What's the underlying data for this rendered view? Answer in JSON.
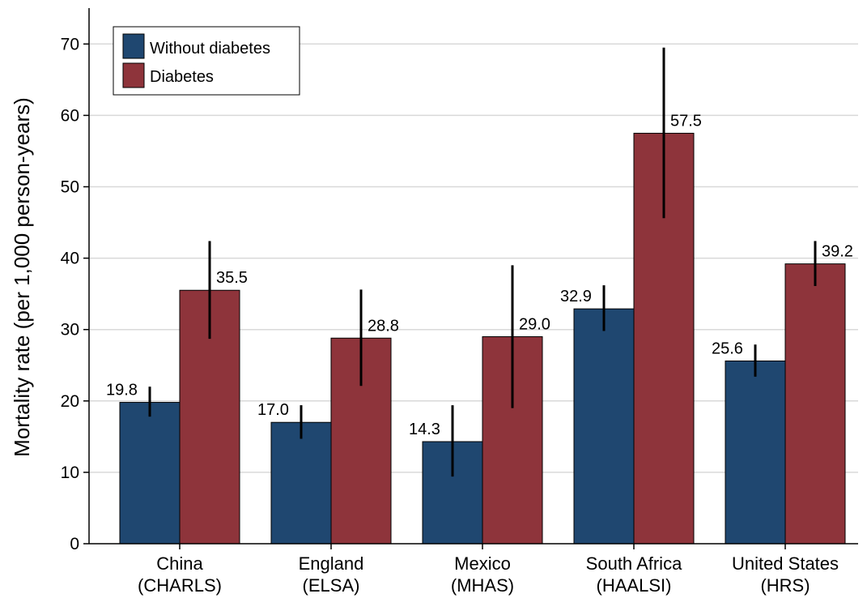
{
  "chart_data": {
    "type": "bar",
    "title": "",
    "xlabel": "",
    "ylabel": "Mortality rate (per 1,000 person-years)",
    "ylim": [
      0,
      75
    ],
    "yticks": [
      0,
      10,
      20,
      30,
      40,
      50,
      60,
      70
    ],
    "grid": true,
    "legend_position": "top-left",
    "categories": [
      [
        "China",
        "(CHARLS)"
      ],
      [
        "England",
        "(ELSA)"
      ],
      [
        "Mexico",
        "(MHAS)"
      ],
      [
        "South Africa",
        "(HAALSI)"
      ],
      [
        "United States",
        "(HRS)"
      ]
    ],
    "series": [
      {
        "name": "Without diabetes",
        "color": "#1f4770",
        "values": [
          19.8,
          17.0,
          14.3,
          32.9,
          25.6
        ],
        "labels": [
          "19.8",
          "17.0",
          "14.3",
          "32.9",
          "25.6"
        ],
        "ci_low": [
          17.8,
          14.7,
          9.4,
          29.8,
          23.4
        ],
        "ci_high": [
          22.0,
          19.4,
          19.4,
          36.2,
          27.9
        ]
      },
      {
        "name": "Diabetes",
        "color": "#8e343b",
        "values": [
          35.5,
          28.8,
          29.0,
          57.5,
          39.2
        ],
        "labels": [
          "35.5",
          "28.8",
          "29.0",
          "57.5",
          "39.2"
        ],
        "ci_low": [
          28.7,
          22.1,
          19.0,
          45.6,
          36.1
        ],
        "ci_high": [
          42.4,
          35.6,
          39.0,
          69.5,
          42.4
        ]
      }
    ]
  }
}
